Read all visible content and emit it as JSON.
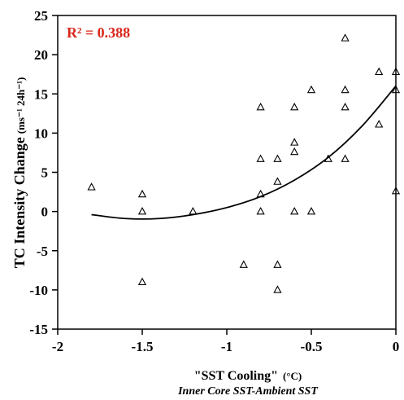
{
  "chart_data": {
    "type": "scatter",
    "annotation": "R² = 0.388",
    "xlabel": "\"SST Cooling\"",
    "xlabel_unit": "(°C)",
    "xlabel_sub": "Inner Core SST-Ambient SST",
    "ylabel": "TC Intensity Change",
    "ylabel_unit": "(ms⁻¹ 24h⁻¹)",
    "xlim": [
      -2,
      0
    ],
    "ylim": [
      -15,
      25
    ],
    "xticks": [
      -2,
      -1.5,
      -1,
      -0.5,
      0
    ],
    "xtick_labels": [
      "-2",
      "-1.5",
      "-1",
      "-0.5",
      "0"
    ],
    "yticks": [
      -15,
      -10,
      -5,
      0,
      5,
      10,
      15,
      20,
      25
    ],
    "ytick_labels": [
      "-15",
      "-10",
      "-5",
      "0",
      "5",
      "10",
      "15",
      "20",
      "25"
    ],
    "marker": "open-triangle",
    "annotation_color": "#d8261a",
    "points": [
      {
        "x": -1.8,
        "y": 3.1
      },
      {
        "x": -1.5,
        "y": 2.2
      },
      {
        "x": -1.5,
        "y": 0.0
      },
      {
        "x": -1.5,
        "y": -9.0
      },
      {
        "x": -1.2,
        "y": 0.0
      },
      {
        "x": -0.9,
        "y": -6.8
      },
      {
        "x": -0.8,
        "y": 13.3
      },
      {
        "x": -0.8,
        "y": 6.7
      },
      {
        "x": -0.8,
        "y": 2.2
      },
      {
        "x": -0.8,
        "y": 0.0
      },
      {
        "x": -0.7,
        "y": 6.7
      },
      {
        "x": -0.7,
        "y": 3.8
      },
      {
        "x": -0.7,
        "y": -6.8
      },
      {
        "x": -0.7,
        "y": -10.0
      },
      {
        "x": -0.6,
        "y": 13.3
      },
      {
        "x": -0.6,
        "y": 8.8
      },
      {
        "x": -0.6,
        "y": 7.6
      },
      {
        "x": -0.6,
        "y": 0.0
      },
      {
        "x": -0.5,
        "y": 15.5
      },
      {
        "x": -0.5,
        "y": 0.0
      },
      {
        "x": -0.4,
        "y": 6.7
      },
      {
        "x": -0.3,
        "y": 22.1
      },
      {
        "x": -0.3,
        "y": 15.5
      },
      {
        "x": -0.3,
        "y": 13.3
      },
      {
        "x": -0.3,
        "y": 6.7
      },
      {
        "x": -0.1,
        "y": 17.8
      },
      {
        "x": -0.1,
        "y": 11.1
      },
      {
        "x": 0.0,
        "y": 17.8
      },
      {
        "x": 0.0,
        "y": 15.5
      },
      {
        "x": 0.0,
        "y": 2.6
      }
    ],
    "trendline": {
      "type": "polynomial-2",
      "x_range": [
        -1.8,
        0
      ],
      "points": [
        {
          "x": -1.8,
          "y": -0.4
        },
        {
          "x": -1.6,
          "y": -0.9
        },
        {
          "x": -1.4,
          "y": -0.9
        },
        {
          "x": -1.2,
          "y": -0.4
        },
        {
          "x": -1.0,
          "y": 0.5
        },
        {
          "x": -0.8,
          "y": 1.9
        },
        {
          "x": -0.6,
          "y": 4.0
        },
        {
          "x": -0.4,
          "y": 6.9
        },
        {
          "x": -0.2,
          "y": 10.9
        },
        {
          "x": 0.0,
          "y": 16.0
        }
      ]
    }
  }
}
